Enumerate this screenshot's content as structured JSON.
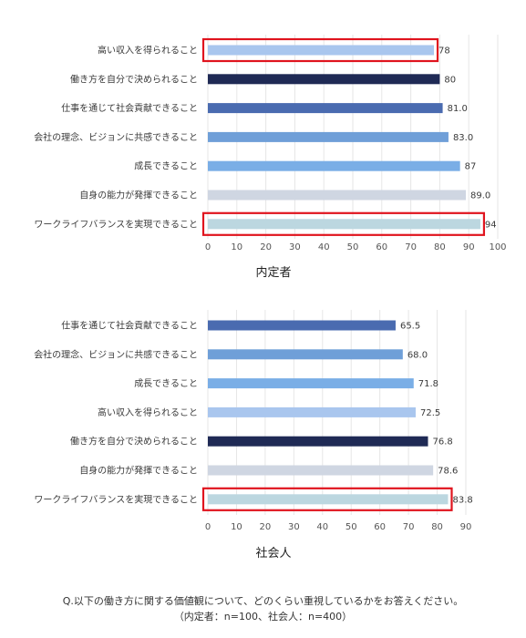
{
  "chart_data": [
    {
      "type": "bar",
      "orientation": "horizontal",
      "title": "内定者",
      "categories": [
        "高い収入を得られること",
        "働き方を自分で決められること",
        "仕事を通じて社会貢献できること",
        "会社の理念、ビジョンに共感できること",
        "成長できること",
        "自身の能力が発揮できること",
        "ワークライフバランスを実現できること"
      ],
      "values": [
        78,
        80,
        81.0,
        83.0,
        87,
        89.0,
        94
      ],
      "value_labels": [
        "78",
        "80",
        "81.0",
        "83.0",
        "87",
        "89.0",
        "94"
      ],
      "colors": [
        "#a9c6ee",
        "#1f2a55",
        "#4a6bb0",
        "#6f9fd8",
        "#7aaee6",
        "#cfd6e2",
        "#bcd7e0"
      ],
      "highlighted": [
        "高い収入を得られること",
        "ワークライフバランスを実現できること"
      ],
      "xlim": [
        0,
        100
      ],
      "xticks": [
        "0",
        "10",
        "20",
        "30",
        "40",
        "50",
        "60",
        "70",
        "80",
        "90",
        "100"
      ],
      "grid": true
    },
    {
      "type": "bar",
      "orientation": "horizontal",
      "title": "社会人",
      "categories": [
        "仕事を通じて社会貢献できること",
        "会社の理念、ビジョンに共感できること",
        "成長できること",
        "高い収入を得られること",
        "働き方を自分で決められること",
        "自身の能力が発揮できること",
        "ワークライフバランスを実現できること"
      ],
      "values": [
        65.5,
        68.0,
        71.8,
        72.5,
        76.8,
        78.6,
        83.8
      ],
      "value_labels": [
        "65.5",
        "68.0",
        "71.8",
        "72.5",
        "76.8",
        "78.6",
        "83.8"
      ],
      "colors": [
        "#4a6bb0",
        "#6f9fd8",
        "#7aaee6",
        "#a9c6ee",
        "#1f2a55",
        "#cfd6e2",
        "#bcd7e0"
      ],
      "highlighted": [
        "ワークライフバランスを実現できること"
      ],
      "xlim": [
        0,
        90
      ],
      "xticks": [
        "0",
        "10",
        "20",
        "30",
        "40",
        "50",
        "60",
        "70",
        "80",
        "90"
      ],
      "grid": true
    }
  ],
  "highlight_color": "#e0141e",
  "footer": {
    "line1": "Q.以下の働き方に関する価値観について、どのくらい重視しているかをお答えください。",
    "line2": "（内定者：n=100、社会人：n=400）"
  }
}
